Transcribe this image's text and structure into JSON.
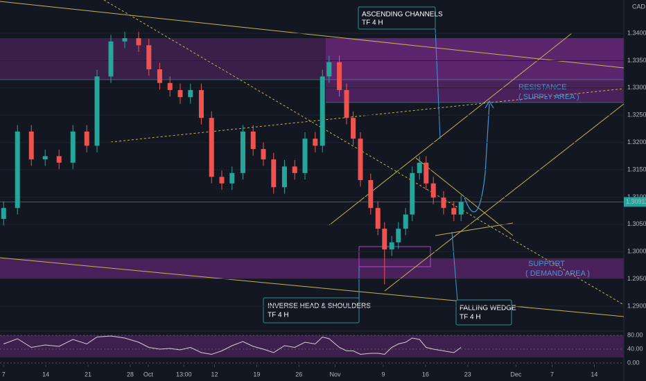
{
  "chart_data": [
    {
      "type": "candlestick",
      "currency": "CAD",
      "x": [
        0,
        2.3,
        4.6,
        6.9,
        9.2,
        11.5,
        13.8,
        15.5,
        17.8,
        20.1,
        22.4,
        24.1,
        25.9,
        27.6,
        29.3,
        31,
        32.8,
        34.5,
        36.2,
        37.9,
        39.7,
        41.4,
        43.1,
        44.8,
        46.6,
        48.3,
        50,
        51.7,
        52.9,
        54,
        55.7,
        56.9,
        58,
        59.2,
        60.9,
        62.1,
        63.2,
        64.4,
        65.5,
        66.7,
        67.8,
        69,
        70.1,
        71.3,
        73,
        74.7,
        75.9
      ],
      "open": [
        1.306,
        1.308,
        1.322,
        1.3169,
        1.3175,
        1.3163,
        1.322,
        1.3194,
        1.3321,
        1.3385,
        1.3391,
        1.3378,
        1.3334,
        1.3309,
        1.3296,
        1.3283,
        1.3296,
        1.3245,
        1.3137,
        1.3125,
        1.3144,
        1.322,
        1.3188,
        1.3169,
        1.3118,
        1.3156,
        1.3144,
        1.3207,
        1.3194,
        1.3321,
        1.3347,
        1.3296,
        1.3245,
        1.3207,
        1.3131,
        1.308,
        1.3042,
        1.3004,
        1.3017,
        1.3042,
        1.3068,
        1.3144,
        1.3163,
        1.3125,
        1.3099,
        1.308,
        1.3068
      ],
      "high": [
        1.3092,
        1.3232,
        1.3232,
        1.3187,
        1.3187,
        1.3232,
        1.3232,
        1.3333,
        1.3397,
        1.3403,
        1.3403,
        1.339,
        1.3346,
        1.3321,
        1.3308,
        1.3308,
        1.3308,
        1.3257,
        1.3149,
        1.3156,
        1.3232,
        1.3232,
        1.32,
        1.3181,
        1.3168,
        1.3168,
        1.3219,
        1.3219,
        1.3333,
        1.3359,
        1.3359,
        1.3308,
        1.3257,
        1.3219,
        1.3143,
        1.3092,
        1.3054,
        1.3029,
        1.3054,
        1.308,
        1.3156,
        1.3175,
        1.3175,
        1.3137,
        1.3111,
        1.3092,
        1.3103
      ],
      "low": [
        1.3048,
        1.3068,
        1.3157,
        1.3157,
        1.3151,
        1.3151,
        1.3182,
        1.3182,
        1.3309,
        1.3373,
        1.3366,
        1.3322,
        1.3297,
        1.3284,
        1.3271,
        1.3271,
        1.3233,
        1.3125,
        1.3113,
        1.3113,
        1.3132,
        1.3176,
        1.3157,
        1.3106,
        1.3106,
        1.3132,
        1.3132,
        1.3182,
        1.3182,
        1.3309,
        1.3284,
        1.3233,
        1.3195,
        1.3119,
        1.3068,
        1.303,
        1.294,
        1.2992,
        1.3005,
        1.303,
        1.3056,
        1.3132,
        1.3113,
        1.3087,
        1.3068,
        1.3056,
        1.3056
      ],
      "close": [
        1.308,
        1.322,
        1.3169,
        1.3175,
        1.3163,
        1.322,
        1.3194,
        1.3321,
        1.3385,
        1.3391,
        1.3378,
        1.3334,
        1.3309,
        1.3296,
        1.3283,
        1.3296,
        1.3245,
        1.3137,
        1.3125,
        1.3144,
        1.322,
        1.3188,
        1.3169,
        1.3118,
        1.3156,
        1.3144,
        1.3207,
        1.3194,
        1.3321,
        1.3347,
        1.3296,
        1.3245,
        1.3207,
        1.3131,
        1.308,
        1.3042,
        1.3004,
        1.3017,
        1.3042,
        1.3068,
        1.3144,
        1.3163,
        1.3125,
        1.3099,
        1.308,
        1.3068,
        1.3091
      ],
      "up_color": "#26a69a",
      "down_color": "#ef5350",
      "last_price": 1.30911,
      "xlim": [
        -0.6,
        102.9
      ],
      "xticks": [
        {
          "value": 0,
          "label": "7"
        },
        {
          "value": 7,
          "label": "14"
        },
        {
          "value": 14,
          "label": "21"
        },
        {
          "value": 21,
          "label": "28"
        },
        {
          "value": 24,
          "label": "Oct"
        },
        {
          "value": 29.9,
          "label": "13:00"
        },
        {
          "value": 35,
          "label": "12"
        },
        {
          "value": 42,
          "label": "19"
        },
        {
          "value": 49,
          "label": "26"
        },
        {
          "value": 55,
          "label": "Nov"
        },
        {
          "value": 63,
          "label": "9"
        },
        {
          "value": 70,
          "label": "16"
        },
        {
          "value": 77,
          "label": "23"
        },
        {
          "value": 85,
          "label": "Dec"
        },
        {
          "value": 91,
          "label": "7"
        },
        {
          "value": 98,
          "label": "14"
        }
      ],
      "ylim": [
        1.2862,
        1.3461
      ],
      "yticks": [
        {
          "value": 1.29,
          "label": "1.29000"
        },
        {
          "value": 1.295,
          "label": "1.29500"
        },
        {
          "value": 1.3,
          "label": "1.30000"
        },
        {
          "value": 1.305,
          "label": "1.30500"
        },
        {
          "value": 1.31,
          "label": "1.31000"
        },
        {
          "value": 1.315,
          "label": "1.31500"
        },
        {
          "value": 1.32,
          "label": "1.32000"
        },
        {
          "value": 1.325,
          "label": "1.32500"
        },
        {
          "value": 1.33,
          "label": "1.33000"
        },
        {
          "value": 1.335,
          "label": "1.33500"
        },
        {
          "value": 1.34,
          "label": "1.34000"
        }
      ],
      "annotations": [
        {
          "lines": [
            "ASCENDING CHANNELS",
            "TF 4 H"
          ]
        },
        {
          "lines": [
            "RESISTANCE",
            "( SUPPLY AREA )"
          ]
        },
        {
          "lines": [
            "SUPPORT",
            "( DEMAND AREA )"
          ]
        },
        {
          "lines": [
            "INVERSE HEAD & SHOULDERS",
            "TF 4 H"
          ]
        },
        {
          "lines": [
            "FALLING WEDGE",
            "TF 4 H"
          ]
        }
      ]
    },
    {
      "type": "line",
      "color": "#d0d0d0",
      "x": [
        0,
        2.3,
        4.6,
        6.9,
        9.2,
        11.5,
        13.8,
        15.5,
        17.8,
        20.1,
        22.4,
        24.1,
        25.9,
        27.6,
        29.3,
        31,
        32.8,
        34.5,
        36.2,
        37.9,
        39.7,
        41.4,
        43.1,
        44.8,
        46.6,
        48.3,
        50,
        51.7,
        52.9,
        54,
        55.7,
        56.9,
        58,
        59.2,
        60.9,
        62.1,
        63.2,
        64.4,
        65.5,
        66.7,
        67.8,
        69,
        70.1,
        71.3,
        73,
        74.7,
        75.9
      ],
      "values": [
        55,
        70,
        45,
        52,
        48,
        68,
        55,
        75,
        78,
        72,
        60,
        45,
        40,
        42,
        38,
        45,
        30,
        25,
        35,
        50,
        62,
        48,
        40,
        30,
        50,
        45,
        60,
        55,
        75,
        70,
        45,
        35,
        35,
        25,
        28,
        28,
        25,
        45,
        55,
        60,
        72,
        68,
        45,
        40,
        35,
        30,
        45
      ],
      "ylim": [
        0,
        100
      ],
      "yticks": [
        {
          "value": 0,
          "label": "0.00"
        },
        {
          "value": 40,
          "label": "40.00"
        },
        {
          "value": 80,
          "label": "80.00"
        }
      ]
    }
  ]
}
